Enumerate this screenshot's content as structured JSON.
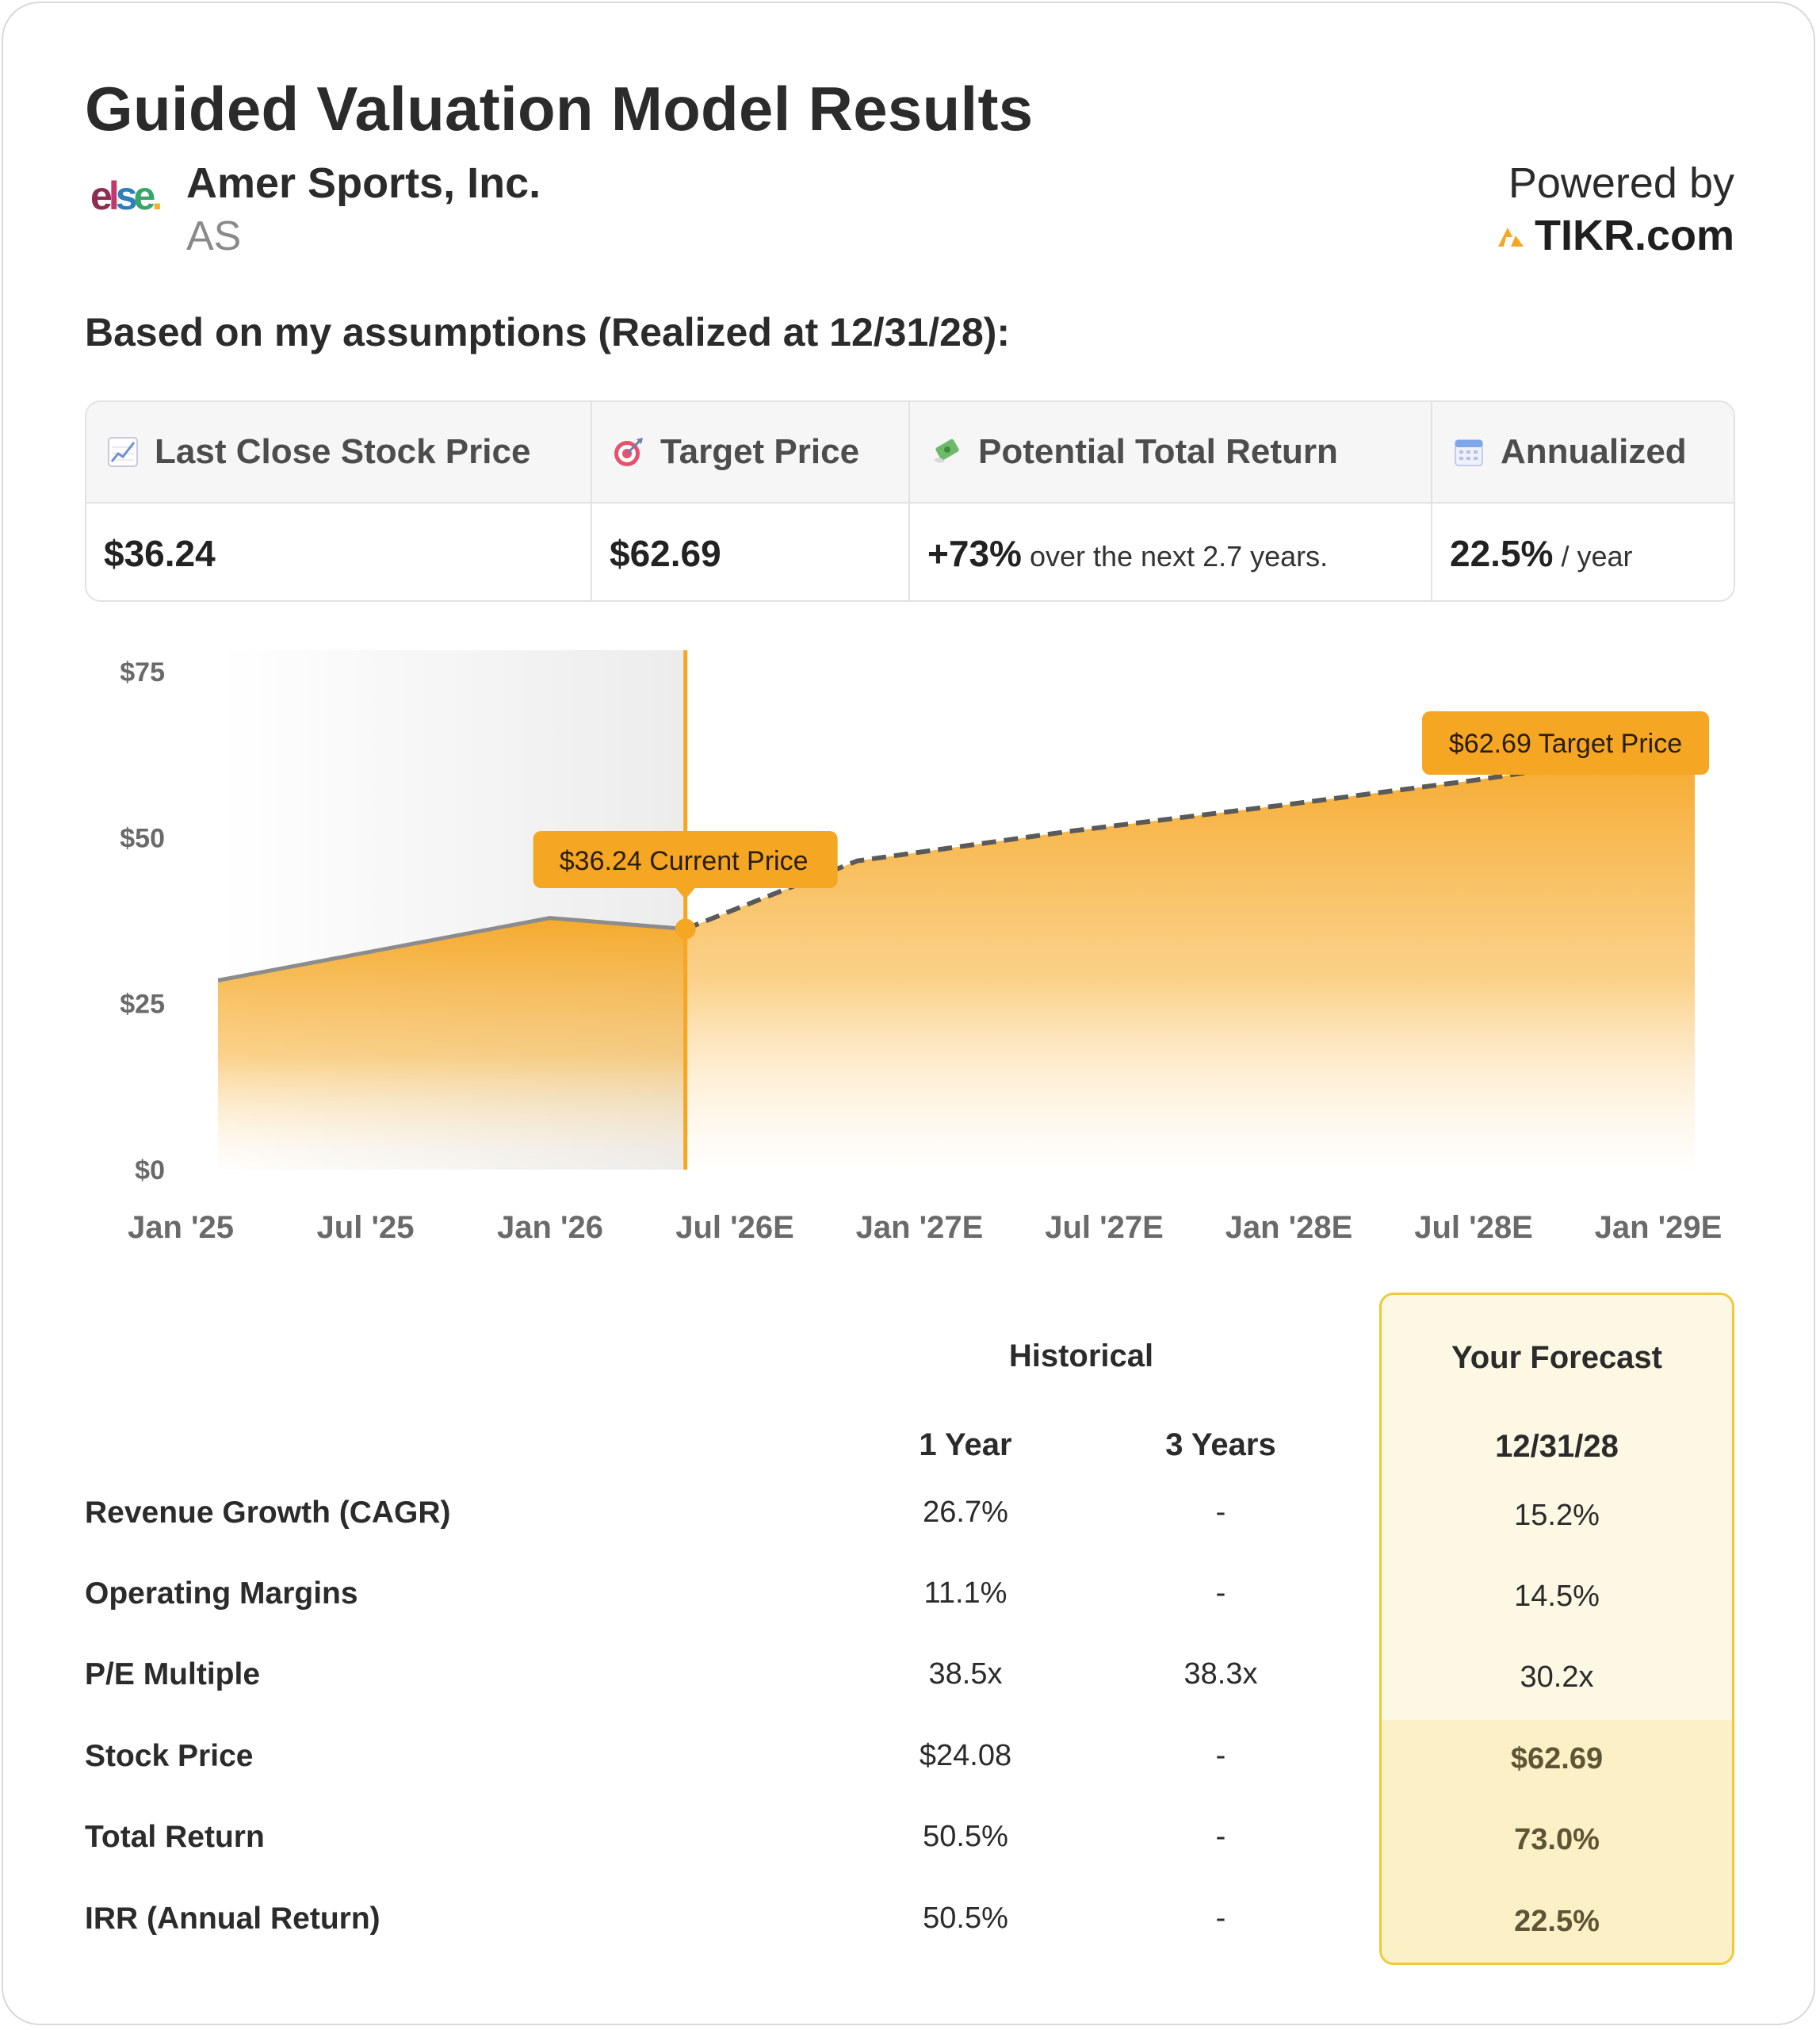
{
  "header": {
    "title": "Guided Valuation Model Results",
    "company_name": "Amer Sports, Inc.",
    "ticker": "AS",
    "powered_by": "Powered by",
    "brand": "TIKR.com",
    "subheading": "Based on my assumptions (Realized at 12/31/28):"
  },
  "summary": {
    "columns": [
      {
        "icon": "chart-increasing-icon",
        "label": "Last Close Stock Price",
        "value": "$36.24",
        "suffix": ""
      },
      {
        "icon": "target-icon",
        "label": "Target Price",
        "value": "$62.69",
        "suffix": ""
      },
      {
        "icon": "money-with-wings-icon",
        "label": "Potential Total Return",
        "value": "+73%",
        "suffix": "over the next 2.7 years."
      },
      {
        "icon": "calendar-icon",
        "label": "Annualized",
        "value": "22.5%",
        "suffix": "/ year"
      }
    ]
  },
  "chart_data": {
    "type": "area",
    "x_ticks": [
      "Jan '25",
      "Jul '25",
      "Jan '26",
      "Jul '26E",
      "Jan '27E",
      "Jul '27E",
      "Jan '28E",
      "Jul '28E",
      "Jan '29E"
    ],
    "y_ticks": [
      "$0",
      "$25",
      "$50",
      "$75"
    ],
    "ylim": [
      0,
      75
    ],
    "historical": {
      "x": [
        "2025-02-01",
        "2026-01-01",
        "2026-05-15"
      ],
      "y": [
        28.5,
        37.9,
        36.24
      ]
    },
    "forecast": {
      "x": [
        "2026-05-15",
        "2026-11-01",
        "2027-06-01",
        "2028-01-01",
        "2028-07-01",
        "2028-12-31"
      ],
      "y": [
        36.24,
        46.5,
        51.0,
        55.0,
        58.6,
        62.69
      ]
    },
    "current_marker": {
      "date": "2026-05-15",
      "value": 36.24,
      "label": "$36.24 Current Price"
    },
    "target_marker": {
      "date": "2028-12-31",
      "value": 62.69,
      "label": "$62.69 Target Price"
    },
    "colors": {
      "accent": "#f5a623",
      "historical_line": "#8c8c8c",
      "forecast_line": "#5a5a5a",
      "shade": "#eeeeee"
    }
  },
  "table": {
    "historical_header": "Historical",
    "forecast_header": "Your Forecast",
    "col_1y": "1 Year",
    "col_3y": "3 Years",
    "col_forecast": "12/31/28",
    "rows": [
      {
        "label": "Revenue Growth (CAGR)",
        "y1": "26.7%",
        "y3": "-",
        "forecast": "15.2%"
      },
      {
        "label": "Operating Margins",
        "y1": "11.1%",
        "y3": "-",
        "forecast": "14.5%"
      },
      {
        "label": "P/E Multiple",
        "y1": "38.5x",
        "y3": "38.3x",
        "forecast": "30.2x"
      },
      {
        "label": "Stock Price",
        "y1": "$24.08",
        "y3": "-",
        "forecast": "$62.69"
      },
      {
        "label": "Total Return",
        "y1": "50.5%",
        "y3": "-",
        "forecast": "73.0%"
      },
      {
        "label": "IRR (Annual Return)",
        "y1": "50.5%",
        "y3": "-",
        "forecast": "22.5%"
      }
    ]
  }
}
